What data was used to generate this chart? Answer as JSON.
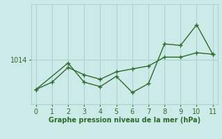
{
  "xlabel": "Graphe pression niveau de la mer (hPa)",
  "background_color": "#cceae8",
  "grid_color": "#aad4d2",
  "line_color": "#2d6a2d",
  "x_ticks": [
    0,
    1,
    2,
    3,
    4,
    5,
    6,
    7,
    8,
    9,
    10,
    11
  ],
  "xlim": [
    -0.3,
    11.3
  ],
  "ylim": [
    1011.0,
    1017.8
  ],
  "yticks": [
    1014
  ],
  "series1_x": [
    0,
    1,
    2,
    3,
    4,
    5,
    6,
    7,
    8,
    9,
    10,
    11
  ],
  "series1_y": [
    1012.0,
    1012.5,
    1013.5,
    1013.0,
    1012.7,
    1013.2,
    1013.4,
    1013.6,
    1014.2,
    1014.2,
    1014.5,
    1014.4
  ],
  "series2_x": [
    0,
    2,
    3,
    4,
    5,
    6,
    7,
    8,
    9,
    10,
    11
  ],
  "series2_y": [
    1012.0,
    1013.8,
    1012.5,
    1012.2,
    1012.9,
    1011.8,
    1012.4,
    1015.1,
    1015.0,
    1016.4,
    1014.4
  ]
}
